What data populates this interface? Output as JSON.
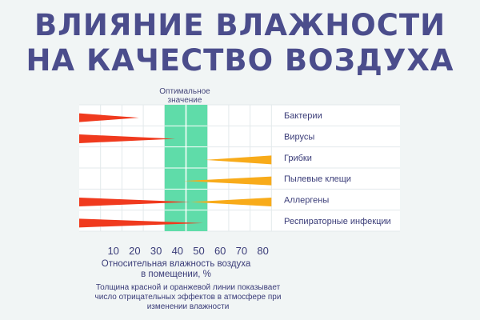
{
  "title": {
    "line1": "ВЛИЯНИЕ ВЛАЖНОСТИ",
    "line2": "НА КАЧЕСТВО  ВОЗДУХА"
  },
  "optimal_label": {
    "line1": "Оптимальное",
    "line2": "значение"
  },
  "xlabel": {
    "line1": "Относительная влажность  воздуха",
    "line2": "в помещении, %"
  },
  "note": {
    "line1": "Толщина красной  и оранжевой линии показывает",
    "line2": "число  отрицательных эффектов  в атмосфере при",
    "line3": "изменении влажности"
  },
  "colors": {
    "red": "#f03a1e",
    "orange": "#f8ab1a",
    "optimal": "#5fdca9",
    "title": "#4b4d8c",
    "grid": "#e3e9eb"
  },
  "chart_data": {
    "type": "bar",
    "x_ticks": [
      10,
      20,
      30,
      40,
      50,
      60,
      70,
      80
    ],
    "xlim": [
      0,
      90
    ],
    "optimal_range": [
      40,
      60
    ],
    "categories": [
      "Бактерии",
      "Вирусы",
      "Грибки",
      "Пылевые клещи",
      "Аллергены",
      "Респираторные инфекции"
    ],
    "effects": [
      {
        "category": "Бактерии",
        "red": {
          "from": 0,
          "to": 28
        },
        "orange": null
      },
      {
        "category": "Вирусы",
        "red": {
          "from": 0,
          "to": 45
        },
        "orange": null
      },
      {
        "category": "Грибки",
        "red": null,
        "orange": {
          "from": 59,
          "to": 90
        }
      },
      {
        "category": "Пылевые клещи",
        "red": null,
        "orange": {
          "from": 49,
          "to": 90
        }
      },
      {
        "category": "Аллергены",
        "red": {
          "from": 0,
          "to": 52
        },
        "orange": {
          "from": 52,
          "to": 90
        }
      },
      {
        "category": "Респираторные инфекции",
        "red": {
          "from": 0,
          "to": 58
        },
        "orange": null
      }
    ],
    "grid": true
  }
}
